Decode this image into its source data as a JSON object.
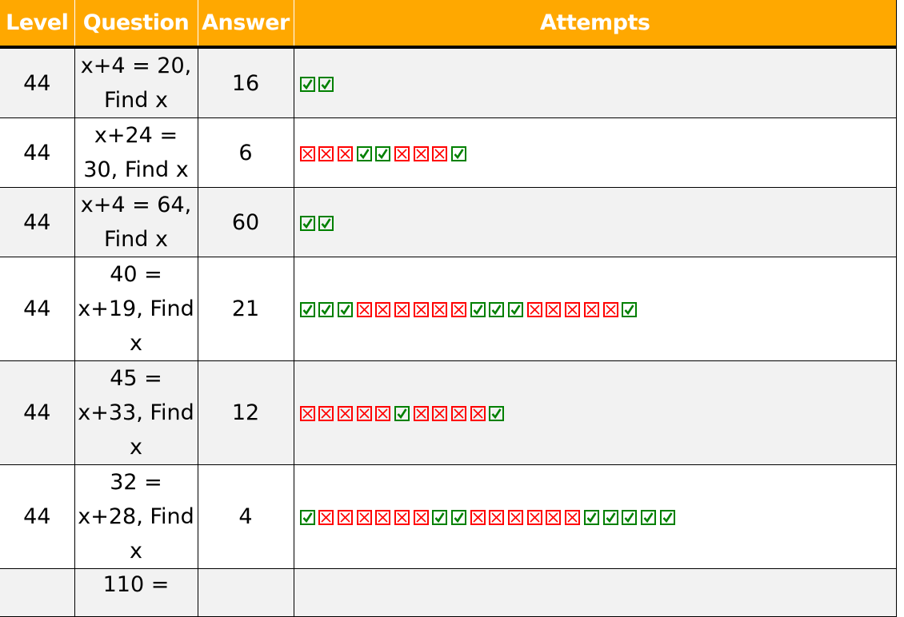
{
  "header": {
    "level": "Level",
    "question": "Question",
    "answer": "Answer",
    "attempts": "Attempts"
  },
  "colors": {
    "header_bg": "#FFA800",
    "correct": "#008000",
    "wrong": "#FF0000",
    "alt_row": "#F2F2F2"
  },
  "icons": {
    "correct": "checkbox-checked-icon",
    "wrong": "checkbox-cross-icon"
  },
  "rows": [
    {
      "level": "44",
      "question": "x+4 = 20, Find x",
      "answer": "16",
      "attempts": "CC"
    },
    {
      "level": "44",
      "question": "x+24 = 30, Find x",
      "answer": "6",
      "attempts": "WWWCCWWWC"
    },
    {
      "level": "44",
      "question": "x+4 = 64, Find x",
      "answer": "60",
      "attempts": "CC"
    },
    {
      "level": "44",
      "question": "40 = x+19, Find x",
      "answer": "21",
      "attempts": "CCCWWWWWWCCCWWWWWC"
    },
    {
      "level": "44",
      "question": "45 = x+33, Find x",
      "answer": "12",
      "attempts": "WWWWWCWWWWC"
    },
    {
      "level": "44",
      "question": "32 = x+28, Find x",
      "answer": "4",
      "attempts": "CWWWWWWCCWWWWWWCCCCC"
    },
    {
      "level": "",
      "question": "110 =",
      "answer": "",
      "attempts": ""
    }
  ]
}
